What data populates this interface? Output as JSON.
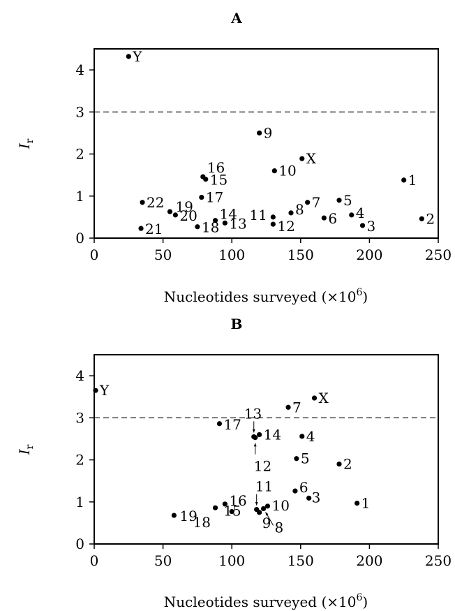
{
  "chart_data": [
    {
      "type": "scatter",
      "title": "A",
      "xlabel": "Nucleotides surveyed (×10",
      "xlabel_exp": "6",
      "xlabel_close": ")",
      "ylabel": "I",
      "ylabel_sub": "r",
      "xlim": [
        0,
        250
      ],
      "ylim": [
        0,
        4.5
      ],
      "xticks": [
        0,
        50,
        100,
        150,
        200,
        250
      ],
      "yticks": [
        0,
        1,
        2,
        3,
        4
      ],
      "threshold": 3,
      "points": [
        {
          "label": "Y",
          "x": 25,
          "y": 4.32
        },
        {
          "label": "9",
          "x": 120,
          "y": 2.5
        },
        {
          "label": "X",
          "x": 151,
          "y": 1.89
        },
        {
          "label": "10",
          "x": 131,
          "y": 1.6
        },
        {
          "label": "16",
          "x": 79,
          "y": 1.46
        },
        {
          "label": "15",
          "x": 81,
          "y": 1.4
        },
        {
          "label": "1",
          "x": 225,
          "y": 1.38
        },
        {
          "label": "17",
          "x": 78,
          "y": 0.97
        },
        {
          "label": "5",
          "x": 178,
          "y": 0.9
        },
        {
          "label": "7",
          "x": 155,
          "y": 0.85
        },
        {
          "label": "22",
          "x": 35,
          "y": 0.85
        },
        {
          "label": "19",
          "x": 55,
          "y": 0.63
        },
        {
          "label": "8",
          "x": 143,
          "y": 0.6
        },
        {
          "label": "20",
          "x": 59,
          "y": 0.55
        },
        {
          "label": "4",
          "x": 187,
          "y": 0.55
        },
        {
          "label": "11",
          "x": 130,
          "y": 0.5
        },
        {
          "label": "6",
          "x": 167,
          "y": 0.48
        },
        {
          "label": "2",
          "x": 238,
          "y": 0.46
        },
        {
          "label": "14",
          "x": 88,
          "y": 0.42
        },
        {
          "label": "13",
          "x": 95,
          "y": 0.36
        },
        {
          "label": "12",
          "x": 130,
          "y": 0.33
        },
        {
          "label": "3",
          "x": 195,
          "y": 0.3
        },
        {
          "label": "18",
          "x": 75,
          "y": 0.27
        },
        {
          "label": "21",
          "x": 34,
          "y": 0.23
        }
      ]
    },
    {
      "type": "scatter",
      "title": "B",
      "xlabel": "Nucleotides surveyed (×10",
      "xlabel_exp": "6",
      "xlabel_close": ")",
      "ylabel": "I",
      "ylabel_sub": "r",
      "xlim": [
        0,
        250
      ],
      "ylim": [
        0,
        4.5
      ],
      "xticks": [
        0,
        50,
        100,
        150,
        200,
        250
      ],
      "yticks": [
        0,
        1,
        2,
        3,
        4
      ],
      "threshold": 3,
      "points": [
        {
          "label": "Y",
          "x": 1,
          "y": 3.65
        },
        {
          "label": "X",
          "x": 160,
          "y": 3.47
        },
        {
          "label": "7",
          "x": 141,
          "y": 3.25
        },
        {
          "label": "17",
          "x": 91,
          "y": 2.86
        },
        {
          "label": "14",
          "x": 120,
          "y": 2.6
        },
        {
          "label": "4",
          "x": 151,
          "y": 2.56
        },
        {
          "label": "13",
          "x": 116,
          "y": 2.55
        },
        {
          "label": "12",
          "x": 117,
          "y": 2.53
        },
        {
          "label": "5",
          "x": 147,
          "y": 2.03
        },
        {
          "label": "2",
          "x": 178,
          "y": 1.9
        },
        {
          "label": "6",
          "x": 146,
          "y": 1.26
        },
        {
          "label": "3",
          "x": 156,
          "y": 1.09
        },
        {
          "label": "1",
          "x": 191,
          "y": 0.97
        },
        {
          "label": "16",
          "x": 95,
          "y": 0.95
        },
        {
          "label": "10",
          "x": 126,
          "y": 0.9
        },
        {
          "label": "18",
          "x": 88,
          "y": 0.86
        },
        {
          "label": "8",
          "x": 123,
          "y": 0.84
        },
        {
          "label": "11",
          "x": 118,
          "y": 0.82
        },
        {
          "label": "15",
          "x": 100,
          "y": 0.77
        },
        {
          "label": "9",
          "x": 120,
          "y": 0.75
        },
        {
          "label": "19",
          "x": 58,
          "y": 0.68
        }
      ]
    }
  ]
}
